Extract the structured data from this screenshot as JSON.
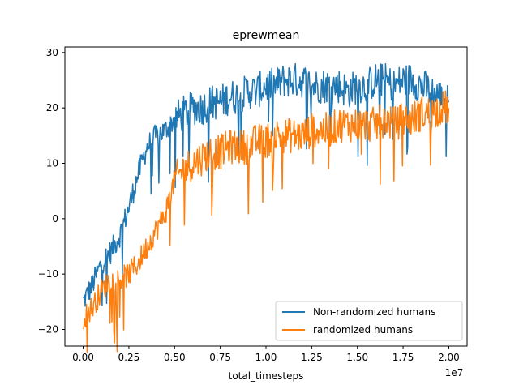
{
  "chart_data": {
    "type": "line",
    "title": "eprewmean",
    "xlabel": "total_timesteps",
    "ylabel": "",
    "x_offset_label": "1e7",
    "xlim": [
      -0.1,
      2.1
    ],
    "ylim": [
      -23,
      31
    ],
    "x_ticks": [
      0.0,
      0.25,
      0.5,
      0.75,
      1.0,
      1.25,
      1.5,
      1.75,
      2.0
    ],
    "x_tick_labels": [
      "0.00",
      "0.25",
      "0.50",
      "0.75",
      "1.00",
      "1.25",
      "1.50",
      "1.75",
      "2.00"
    ],
    "y_ticks": [
      -20,
      -10,
      0,
      10,
      20,
      30
    ],
    "y_tick_labels": [
      "−20",
      "−10",
      "0",
      "10",
      "20",
      "30"
    ],
    "grid": false,
    "legend_position": "lower-right",
    "series": [
      {
        "name": "Non-randomized humans",
        "color": "#1f77b4",
        "x": [
          0.0,
          0.05,
          0.1,
          0.15,
          0.2,
          0.25,
          0.3,
          0.35,
          0.4,
          0.45,
          0.5,
          0.55,
          0.6,
          0.65,
          0.7,
          0.75,
          0.8,
          0.85,
          0.9,
          0.95,
          1.0,
          1.05,
          1.1,
          1.15,
          1.2,
          1.25,
          1.3,
          1.35,
          1.4,
          1.45,
          1.5,
          1.55,
          1.6,
          1.65,
          1.7,
          1.75,
          1.8,
          1.85,
          1.9,
          1.95,
          2.0
        ],
        "y": [
          -15,
          -12,
          -8,
          -6,
          -3,
          2,
          8,
          13,
          15,
          16,
          18,
          19,
          20,
          20,
          21,
          21,
          22,
          22,
          23,
          23,
          24,
          24,
          25,
          25,
          25,
          24,
          24,
          24,
          24,
          23,
          24,
          24,
          25,
          25,
          24,
          25,
          25,
          24,
          23,
          22,
          21
        ]
      },
      {
        "name": "randomized humans",
        "color": "#ff7f0e",
        "x": [
          0.0,
          0.05,
          0.1,
          0.15,
          0.2,
          0.25,
          0.3,
          0.35,
          0.4,
          0.45,
          0.5,
          0.55,
          0.6,
          0.65,
          0.7,
          0.75,
          0.8,
          0.85,
          0.9,
          0.95,
          1.0,
          1.05,
          1.1,
          1.15,
          1.2,
          1.25,
          1.3,
          1.35,
          1.4,
          1.45,
          1.5,
          1.55,
          1.6,
          1.65,
          1.7,
          1.75,
          1.8,
          1.85,
          1.9,
          1.95,
          2.0
        ],
        "y": [
          -18,
          -16,
          -13,
          -11,
          -11,
          -10,
          -8,
          -5,
          -2,
          1,
          7,
          9,
          10,
          11,
          12,
          12,
          13,
          13,
          13,
          14,
          14,
          15,
          15,
          15,
          15,
          16,
          16,
          16,
          17,
          17,
          17,
          17,
          17,
          18,
          17,
          18,
          18,
          19,
          19,
          20,
          20
        ]
      }
    ]
  }
}
